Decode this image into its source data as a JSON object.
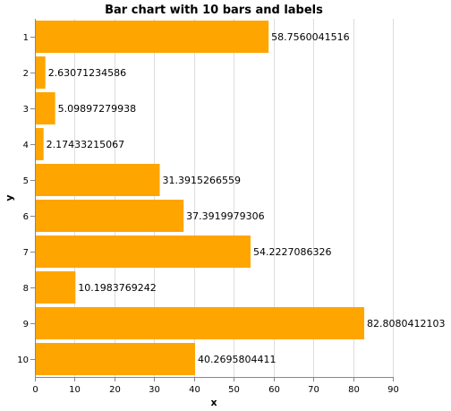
{
  "chart_data": {
    "type": "bar",
    "orientation": "horizontal",
    "title": "Bar chart with 10 bars and labels",
    "xlabel": "x",
    "ylabel": "y",
    "xlim": [
      0,
      90
    ],
    "x_ticks": [
      0,
      10,
      20,
      30,
      40,
      50,
      60,
      70,
      80,
      90
    ],
    "grid": true,
    "bar_color": "#ffa500",
    "categories": [
      "1",
      "2",
      "3",
      "4",
      "5",
      "6",
      "7",
      "8",
      "9",
      "10"
    ],
    "values": [
      58.7560041516,
      2.63071234586,
      5.09897279938,
      2.17433215067,
      31.3915266559,
      37.3919979306,
      54.2227086326,
      10.1983769242,
      82.8080412103,
      40.2695804411
    ],
    "value_labels": [
      "58.7560041516",
      "2.63071234586",
      "5.09897279938",
      "2.17433215067",
      "31.3915266559",
      "37.3919979306",
      "54.2227086326",
      "10.1983769242",
      "82.8080412103",
      "40.2695804411"
    ]
  }
}
